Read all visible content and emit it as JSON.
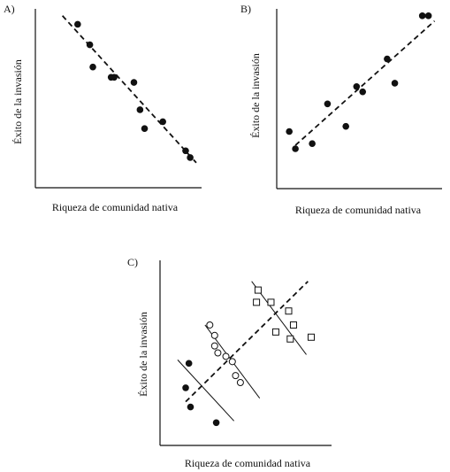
{
  "chart_data": [
    {
      "type": "scatter",
      "panel_label": "A)",
      "xlabel": "Riqueza de comunidad nativa",
      "ylabel": "Éxito de la invasión",
      "xlim": [
        0,
        100
      ],
      "ylim": [
        0,
        100
      ],
      "grid": false,
      "series": [
        {
          "marker": "filled-circle",
          "points": [
            [
              22,
              92
            ],
            [
              30,
              80
            ],
            [
              32,
              67
            ],
            [
              44,
              61
            ],
            [
              46,
              61
            ],
            [
              59,
              58
            ],
            [
              63,
              42
            ],
            [
              66,
              31
            ],
            [
              78,
              35
            ],
            [
              93,
              18
            ],
            [
              96,
              14
            ]
          ]
        }
      ],
      "trend_lines": [
        {
          "style": "dashed",
          "from": [
            12,
            97
          ],
          "to": [
            100,
            11
          ]
        }
      ]
    },
    {
      "type": "scatter",
      "panel_label": "B)",
      "xlabel": "Riqueza de comunidad nativa",
      "ylabel": "Éxito de la invasión",
      "xlim": [
        0,
        100
      ],
      "ylim": [
        0,
        100
      ],
      "grid": false,
      "series": [
        {
          "marker": "filled-circle",
          "points": [
            [
              3,
              30
            ],
            [
              7,
              20
            ],
            [
              18,
              23
            ],
            [
              28,
              46
            ],
            [
              40,
              33
            ],
            [
              47,
              56
            ],
            [
              51,
              53
            ],
            [
              67,
              72
            ],
            [
              72,
              58
            ],
            [
              90,
              97
            ],
            [
              94,
              97
            ]
          ]
        }
      ],
      "trend_lines": [
        {
          "style": "dashed",
          "from": [
            7,
            22
          ],
          "to": [
            98,
            94
          ]
        }
      ]
    },
    {
      "type": "scatter",
      "panel_label": "C)",
      "xlabel": "Riqueza de comunidad nativa",
      "ylabel": "Éxito de la invasión",
      "xlim": [
        0,
        100
      ],
      "ylim": [
        0,
        100
      ],
      "grid": false,
      "series": [
        {
          "marker": "filled-circle",
          "points": [
            [
              13,
              44
            ],
            [
              11,
              30
            ],
            [
              14,
              19
            ],
            [
              30,
              10
            ]
          ]
        },
        {
          "marker": "open-circle",
          "points": [
            [
              26,
              66
            ],
            [
              29,
              60
            ],
            [
              29,
              54
            ],
            [
              31,
              50
            ],
            [
              36,
              48
            ],
            [
              40,
              45
            ],
            [
              42,
              37
            ],
            [
              45,
              33
            ]
          ]
        },
        {
          "marker": "open-square",
          "points": [
            [
              56,
              86
            ],
            [
              55,
              79
            ],
            [
              64,
              79
            ],
            [
              75,
              74
            ],
            [
              78,
              66
            ],
            [
              67,
              62
            ],
            [
              76,
              58
            ],
            [
              89,
              59
            ]
          ]
        }
      ],
      "trend_lines": [
        {
          "style": "dashed",
          "from": [
            11,
            22
          ],
          "to": [
            87,
            91
          ]
        },
        {
          "style": "solid",
          "from": [
            6,
            46
          ],
          "to": [
            41,
            11
          ]
        },
        {
          "style": "solid",
          "from": [
            23,
            66
          ],
          "to": [
            57,
            24
          ]
        },
        {
          "style": "solid",
          "from": [
            52,
            91
          ],
          "to": [
            86,
            49
          ]
        }
      ]
    }
  ]
}
